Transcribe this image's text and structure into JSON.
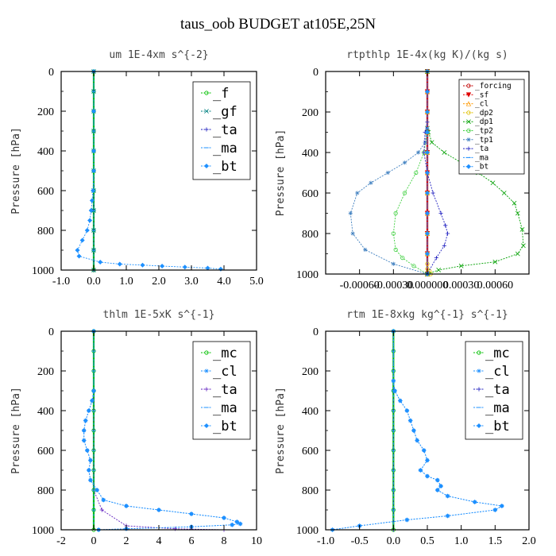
{
  "title": "taus_oob  BUDGET at105E,25N",
  "chart_data": [
    {
      "type": "line",
      "title": "um  1E-4xm s^{-2}",
      "ylabel": "Pressure [hPa]",
      "xlim": [
        -1.0,
        5.0
      ],
      "ylim": [
        1000,
        0
      ],
      "xticks": [
        "-1.0",
        "0.0",
        "1.0",
        "2.0",
        "3.0",
        "4.0",
        "5.0"
      ],
      "xtick_values": [
        -1,
        0,
        1,
        2,
        3,
        4,
        5
      ],
      "yticks": [
        "0",
        "200",
        "400",
        "600",
        "800",
        "1000"
      ],
      "legend_position": "top-right",
      "series": [
        {
          "name": "_f",
          "color": "#00c000",
          "marker": "circle",
          "x": [
            0,
            0,
            0,
            0,
            0,
            0,
            0,
            0,
            0,
            0,
            0
          ],
          "y": [
            0,
            100,
            200,
            300,
            400,
            500,
            600,
            700,
            800,
            900,
            1000
          ]
        },
        {
          "name": "_gf",
          "color": "#008080",
          "marker": "x",
          "x": [
            0,
            0,
            0,
            0,
            0,
            0,
            0,
            0,
            0,
            0,
            0
          ],
          "y": [
            0,
            100,
            200,
            300,
            400,
            500,
            600,
            700,
            800,
            900,
            1000
          ]
        },
        {
          "name": "_ta",
          "color": "#2020c0",
          "marker": "plus",
          "x": [
            0,
            0,
            0,
            0,
            0,
            0,
            0,
            0,
            0,
            0,
            0
          ],
          "y": [
            0,
            100,
            200,
            300,
            400,
            500,
            600,
            700,
            800,
            900,
            1000
          ]
        },
        {
          "name": "_ma",
          "color": "#1e90ff",
          "marker": "dash",
          "x": [
            0,
            0,
            0,
            0,
            0,
            0,
            0,
            0,
            0,
            0,
            0
          ],
          "y": [
            0,
            100,
            200,
            300,
            400,
            500,
            600,
            700,
            800,
            900,
            1000
          ]
        },
        {
          "name": "_bt",
          "color": "#1e90ff",
          "marker": "diamond",
          "x": [
            0,
            0,
            0,
            0,
            -0.02,
            -0.05,
            -0.08,
            -0.12,
            -0.2,
            -0.35,
            -0.5,
            -0.45,
            0.2,
            0.8,
            1.5,
            2.1,
            2.8,
            3.5,
            3.9
          ],
          "y": [
            0,
            200,
            400,
            500,
            600,
            650,
            700,
            750,
            800,
            850,
            900,
            930,
            960,
            970,
            975,
            980,
            985,
            990,
            995
          ]
        }
      ]
    },
    {
      "type": "line",
      "title": "rtpthlp  1E-4x(kg K)/(kg s)",
      "ylabel": "Pressure [hPa]",
      "xlim": [
        -0.0009,
        0.0009
      ],
      "ylim": [
        1000,
        0
      ],
      "xticks": [
        "-0.00060",
        "-0.00030",
        "0.000000",
        "0.00030",
        "0.00060"
      ],
      "xtick_values": [
        -0.0006,
        -0.0003,
        0,
        0.0003,
        0.0006
      ],
      "yticks": [
        "0",
        "200",
        "400",
        "600",
        "800",
        "1000"
      ],
      "legend_position": "top-right",
      "series": [
        {
          "name": "_forcing",
          "color": "#c00000",
          "marker": "circle",
          "x": [
            0,
            0,
            0,
            0,
            0,
            0,
            0,
            0,
            0,
            0,
            0
          ],
          "y": [
            0,
            100,
            200,
            300,
            400,
            500,
            600,
            700,
            800,
            900,
            1000
          ]
        },
        {
          "name": "_sf",
          "color": "#e00000",
          "marker": "triangle-down",
          "x": [
            0,
            0,
            0,
            0,
            0,
            0,
            0,
            0,
            0,
            0,
            0
          ],
          "y": [
            0,
            100,
            200,
            300,
            400,
            500,
            600,
            700,
            800,
            900,
            1000
          ]
        },
        {
          "name": "_cl",
          "color": "#ff9900",
          "marker": "triangle",
          "x": [
            0,
            0,
            0,
            0,
            0,
            0,
            0,
            0,
            0,
            0,
            0
          ],
          "y": [
            0,
            100,
            200,
            300,
            400,
            500,
            600,
            700,
            800,
            900,
            1000
          ]
        },
        {
          "name": "_dp2",
          "color": "#e0c000",
          "marker": "circle",
          "x": [
            0,
            0,
            0,
            0,
            0,
            0,
            0,
            0,
            2e-05,
            3e-05
          ],
          "y": [
            0,
            200,
            400,
            600,
            800,
            900,
            950,
            975,
            985,
            1000
          ]
        },
        {
          "name": "_dp1",
          "color": "#00a000",
          "marker": "x",
          "x": [
            0,
            0,
            1e-05,
            4e-05,
            0.00015,
            0.0003,
            0.00045,
            0.00058,
            0.00068,
            0.00077,
            0.0008,
            0.00084,
            0.00085,
            0.0008,
            0.0006,
            0.0003,
            0.0001,
            0
          ],
          "y": [
            0,
            280,
            300,
            350,
            400,
            450,
            500,
            550,
            600,
            650,
            700,
            780,
            860,
            900,
            940,
            960,
            980,
            1000
          ]
        },
        {
          "name": "_tp2",
          "color": "#40d040",
          "marker": "circle",
          "x": [
            0,
            0,
            -3e-05,
            -0.0001,
            -0.0002,
            -0.00028,
            -0.0003,
            -0.00028,
            -0.00022,
            -0.00012,
            0
          ],
          "y": [
            0,
            300,
            400,
            500,
            600,
            700,
            800,
            880,
            920,
            960,
            1000
          ]
        },
        {
          "name": "_tp1",
          "color": "#4080c0",
          "marker": "asterisk",
          "x": [
            0,
            0,
            -2e-05,
            -8e-05,
            -0.0002,
            -0.00035,
            -0.0005,
            -0.00062,
            -0.00068,
            -0.00066,
            -0.00055,
            -0.0003,
            0
          ],
          "y": [
            0,
            280,
            350,
            400,
            450,
            500,
            550,
            600,
            700,
            800,
            880,
            950,
            1000
          ]
        },
        {
          "name": "_ta",
          "color": "#2020c0",
          "marker": "plus",
          "x": [
            0,
            0,
            -2e-05,
            -3e-05,
            0,
            5e-05,
            0.00012,
            0.00016,
            0.00018,
            0.00015,
            8e-05,
            0
          ],
          "y": [
            0,
            250,
            300,
            400,
            500,
            600,
            700,
            760,
            800,
            860,
            920,
            1000
          ]
        },
        {
          "name": "_ma",
          "color": "#1e90ff",
          "marker": "dash",
          "x": [
            0,
            0,
            0,
            0,
            0,
            0,
            0,
            0,
            0,
            0,
            0
          ],
          "y": [
            0,
            100,
            200,
            300,
            400,
            500,
            600,
            700,
            800,
            900,
            1000
          ]
        },
        {
          "name": "_bt",
          "color": "#1e90ff",
          "marker": "diamond",
          "x": [
            0,
            0,
            0,
            0,
            0,
            0,
            0,
            0,
            0,
            0,
            0
          ],
          "y": [
            0,
            100,
            200,
            300,
            400,
            500,
            600,
            700,
            800,
            900,
            1000
          ]
        }
      ]
    },
    {
      "type": "line",
      "title": "thlm  1E-5xK  s^{-1}",
      "ylabel": "Pressure [hPa]",
      "xlim": [
        -2,
        10
      ],
      "ylim": [
        1000,
        0
      ],
      "xticks": [
        "-2",
        "0",
        "2",
        "4",
        "6",
        "8",
        "10"
      ],
      "xtick_values": [
        -2,
        0,
        2,
        4,
        6,
        8,
        10
      ],
      "yticks": [
        "0",
        "200",
        "400",
        "600",
        "800",
        "1000"
      ],
      "legend_position": "top-right",
      "series": [
        {
          "name": "_mc",
          "color": "#00c000",
          "marker": "circle",
          "x": [
            0,
            0,
            0,
            0,
            0,
            0,
            0,
            0,
            0,
            0,
            0
          ],
          "y": [
            0,
            100,
            200,
            300,
            400,
            500,
            600,
            700,
            800,
            900,
            1000
          ]
        },
        {
          "name": "_cl",
          "color": "#1e90ff",
          "marker": "asterisk",
          "x": [
            0,
            0,
            -0.1,
            -0.3,
            -0.5,
            -0.6,
            -0.6,
            -0.4,
            -0.2,
            -0.3,
            -0.2,
            0.2,
            0.6,
            2.0,
            4.0,
            6.0,
            8.0,
            8.8,
            9.0,
            8.5,
            6.0,
            2.0,
            0.3
          ],
          "y": [
            0,
            300,
            350,
            400,
            450,
            500,
            550,
            600,
            650,
            700,
            750,
            800,
            850,
            880,
            900,
            920,
            940,
            960,
            970,
            975,
            985,
            995,
            1000
          ]
        },
        {
          "name": "_ta",
          "color": "#6020c0",
          "marker": "plus",
          "x": [
            0,
            0,
            0,
            0,
            0,
            0,
            0,
            0,
            0,
            0.5,
            2,
            5,
            8
          ],
          "y": [
            0,
            100,
            200,
            300,
            400,
            500,
            600,
            700,
            800,
            900,
            980,
            995,
            1000
          ]
        },
        {
          "name": "_ma",
          "color": "#1e90ff",
          "marker": "dash",
          "x": [
            0,
            0,
            0,
            0,
            0,
            0,
            0,
            0,
            0,
            0,
            0
          ],
          "y": [
            0,
            100,
            200,
            300,
            400,
            500,
            600,
            700,
            800,
            900,
            1000
          ]
        },
        {
          "name": "_bt",
          "color": "#1e90ff",
          "marker": "diamond",
          "x": [
            0,
            0,
            -0.1,
            -0.3,
            -0.5,
            -0.6,
            -0.6,
            -0.4,
            -0.2,
            -0.3,
            -0.2,
            0.2,
            0.6,
            2.0,
            4.0,
            6.0,
            8.0,
            8.8,
            9.0,
            8.5,
            6.0,
            2.0,
            0.3
          ],
          "y": [
            0,
            300,
            350,
            400,
            450,
            500,
            550,
            600,
            650,
            700,
            750,
            800,
            850,
            880,
            900,
            920,
            940,
            960,
            970,
            975,
            985,
            995,
            1000
          ]
        }
      ]
    },
    {
      "type": "line",
      "title": "rtm  1E-8xkg kg^{-1} s^{-1}",
      "ylabel": "Pressure [hPa]",
      "xlim": [
        -1.0,
        2.0
      ],
      "ylim": [
        1000,
        0
      ],
      "xticks": [
        "-1.0",
        "-0.5",
        "0.0",
        "0.5",
        "1.0",
        "1.5",
        "2.0"
      ],
      "xtick_values": [
        -1,
        -0.5,
        0,
        0.5,
        1,
        1.5,
        2
      ],
      "yticks": [
        "0",
        "200",
        "400",
        "600",
        "800",
        "1000"
      ],
      "legend_position": "top-right",
      "series": [
        {
          "name": "_mc",
          "color": "#00c000",
          "marker": "circle",
          "x": [
            0,
            0,
            0,
            0,
            0,
            0,
            0,
            0,
            0,
            0,
            0
          ],
          "y": [
            0,
            100,
            200,
            300,
            400,
            500,
            600,
            700,
            800,
            900,
            1000
          ]
        },
        {
          "name": "_cl",
          "color": "#1e90ff",
          "marker": "asterisk",
          "x": [
            0,
            0,
            0.02,
            0.1,
            0.2,
            0.25,
            0.3,
            0.35,
            0.45,
            0.5,
            0.4,
            0.5,
            0.65,
            0.7,
            0.65,
            0.8,
            1.2,
            1.6,
            1.5,
            0.8,
            0.2,
            -0.5,
            -0.9
          ],
          "y": [
            0,
            250,
            300,
            350,
            400,
            450,
            500,
            550,
            600,
            650,
            700,
            730,
            750,
            780,
            800,
            830,
            860,
            880,
            900,
            930,
            950,
            980,
            1000
          ]
        },
        {
          "name": "_ta",
          "color": "#2020c0",
          "marker": "plus",
          "x": [
            0,
            0,
            0,
            0,
            0,
            0,
            0,
            0,
            0,
            0,
            0
          ],
          "y": [
            0,
            100,
            200,
            300,
            400,
            500,
            600,
            700,
            800,
            900,
            1000
          ]
        },
        {
          "name": "_ma",
          "color": "#1e90ff",
          "marker": "dash",
          "x": [
            0,
            0,
            0,
            0,
            0,
            0,
            0,
            0,
            0,
            0,
            0
          ],
          "y": [
            0,
            100,
            200,
            300,
            400,
            500,
            600,
            700,
            800,
            900,
            1000
          ]
        },
        {
          "name": "_bt",
          "color": "#1e90ff",
          "marker": "diamond",
          "x": [
            0,
            0,
            0.02,
            0.1,
            0.2,
            0.25,
            0.3,
            0.35,
            0.45,
            0.5,
            0.4,
            0.5,
            0.65,
            0.7,
            0.65,
            0.8,
            1.2,
            1.6,
            1.5,
            0.8,
            0.2,
            -0.5,
            -0.9
          ],
          "y": [
            0,
            250,
            300,
            350,
            400,
            450,
            500,
            550,
            600,
            650,
            700,
            730,
            750,
            780,
            800,
            830,
            860,
            880,
            900,
            930,
            950,
            980,
            1000
          ]
        }
      ]
    }
  ]
}
